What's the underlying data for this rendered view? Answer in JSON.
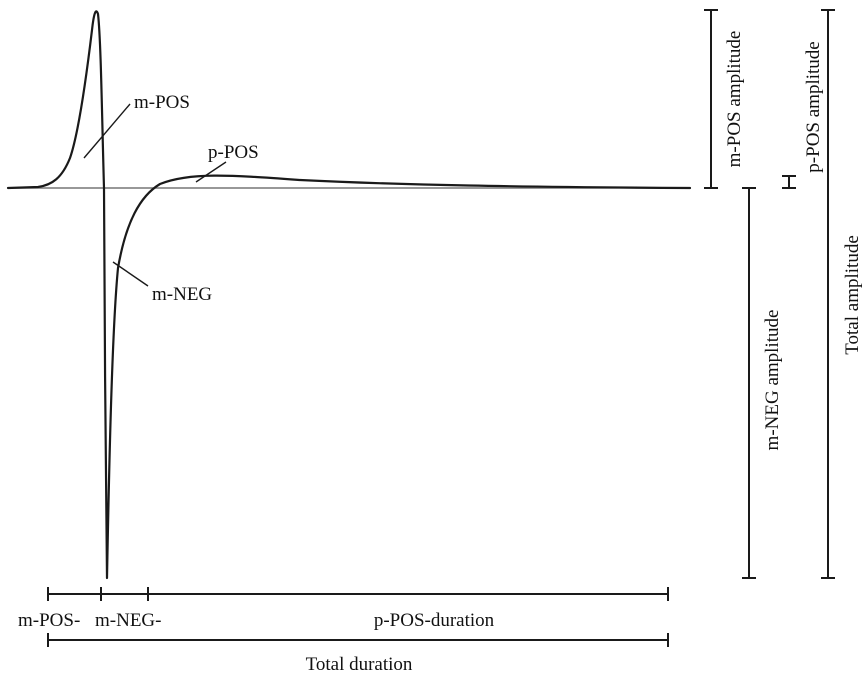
{
  "labels": {
    "m_pos": "m-POS",
    "p_pos": "p-POS",
    "m_neg": "m-NEG",
    "m_pos_amplitude": "m-POS amplitude",
    "p_pos_amplitude": "p-POS amplitude",
    "m_neg_amplitude": "m-NEG amplitude",
    "total_amplitude": "Total amplitude",
    "m_pos_duration": "m-POS-",
    "m_neg_duration": "m-NEG-",
    "p_pos_duration": "p-POS-duration",
    "total_duration": "Total duration"
  },
  "colors": {
    "trace": "#1a1a1a",
    "baseline": "#777777"
  }
}
